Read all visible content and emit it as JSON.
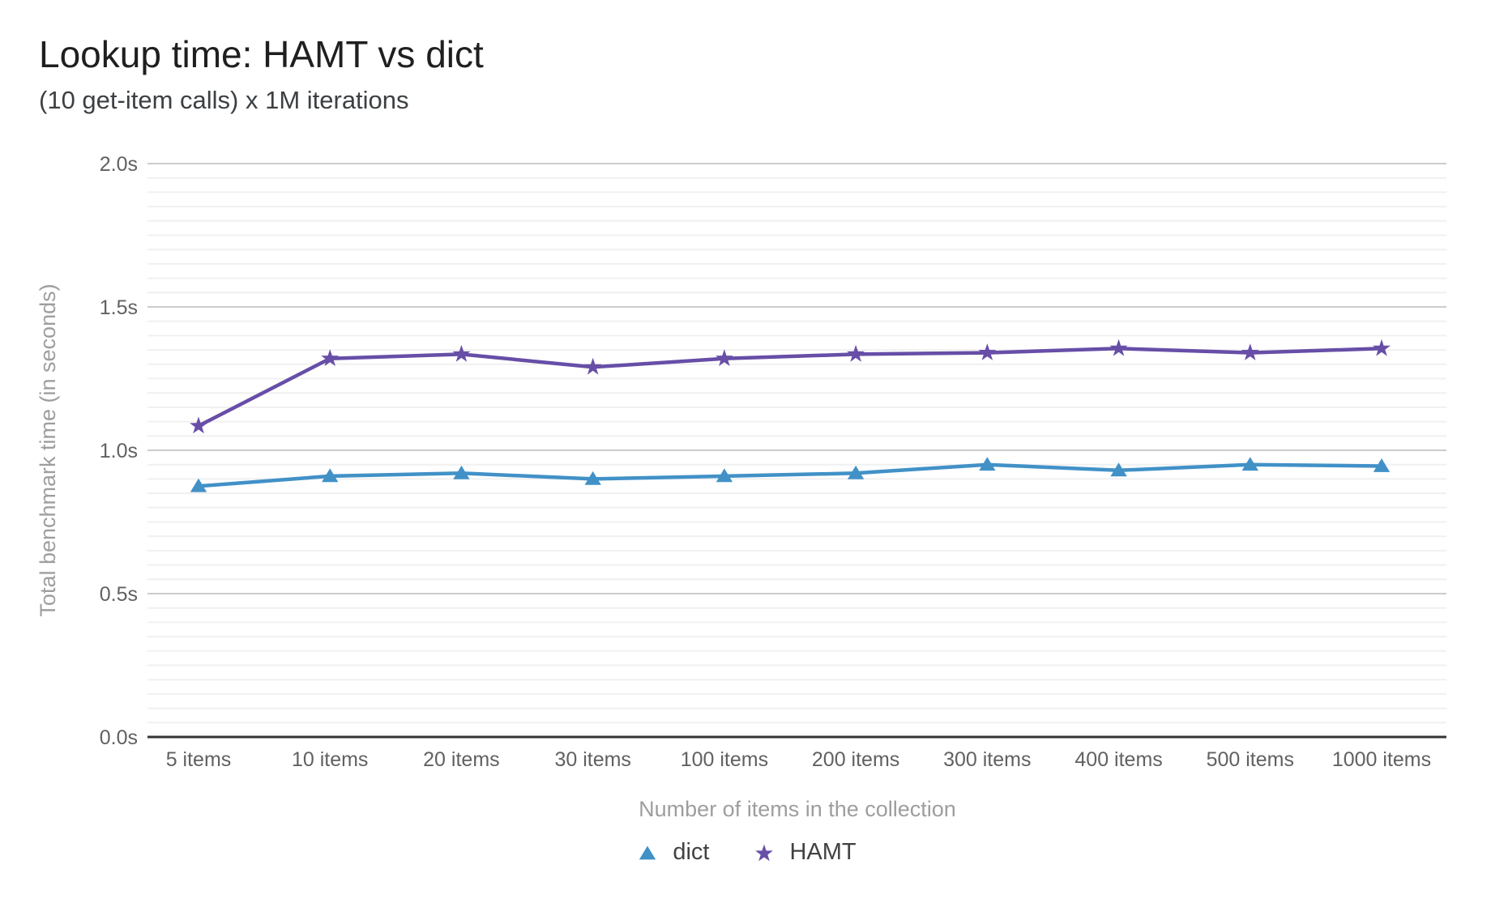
{
  "header": {
    "title": "Lookup time: HAMT vs dict",
    "subtitle": "(10 get-item calls) x 1M iterations"
  },
  "chart_data": {
    "type": "line",
    "title": "Lookup time: HAMT vs dict",
    "subtitle": "(10 get-item calls) x 1M iterations",
    "xlabel": "Number of items in the collection",
    "ylabel": "Total benchmark time (in seconds)",
    "categories": [
      "5 items",
      "10 items",
      "20 items",
      "30 items",
      "100 items",
      "200 items",
      "300 items",
      "400 items",
      "500 items",
      "1000 items"
    ],
    "series": [
      {
        "name": "dict",
        "marker": "triangle",
        "color": "#4191c7",
        "values": [
          0.875,
          0.91,
          0.92,
          0.9,
          0.91,
          0.92,
          0.95,
          0.93,
          0.95,
          0.945
        ]
      },
      {
        "name": "HAMT",
        "marker": "star",
        "color": "#674ea7",
        "values": [
          1.085,
          1.32,
          1.335,
          1.29,
          1.32,
          1.335,
          1.34,
          1.355,
          1.34,
          1.355
        ]
      }
    ],
    "ylim": [
      0,
      2
    ],
    "yticks": [
      {
        "label": "0.0s",
        "value": 0.0
      },
      {
        "label": "0.5s",
        "value": 0.5
      },
      {
        "label": "1.0s",
        "value": 1.0
      },
      {
        "label": "1.5s",
        "value": 1.5
      },
      {
        "label": "2.0s",
        "value": 2.0
      }
    ],
    "major_grid_step": 0.5,
    "minor_grid_step": 0.05,
    "grid": true,
    "legend_position": "bottom"
  },
  "colors": {
    "minor_grid": "#f0f0f0",
    "major_grid": "#cccccc",
    "baseline": "#333333",
    "tick_label": "#616161",
    "axis_title": "#9e9e9e",
    "legend_label": "#424242"
  }
}
